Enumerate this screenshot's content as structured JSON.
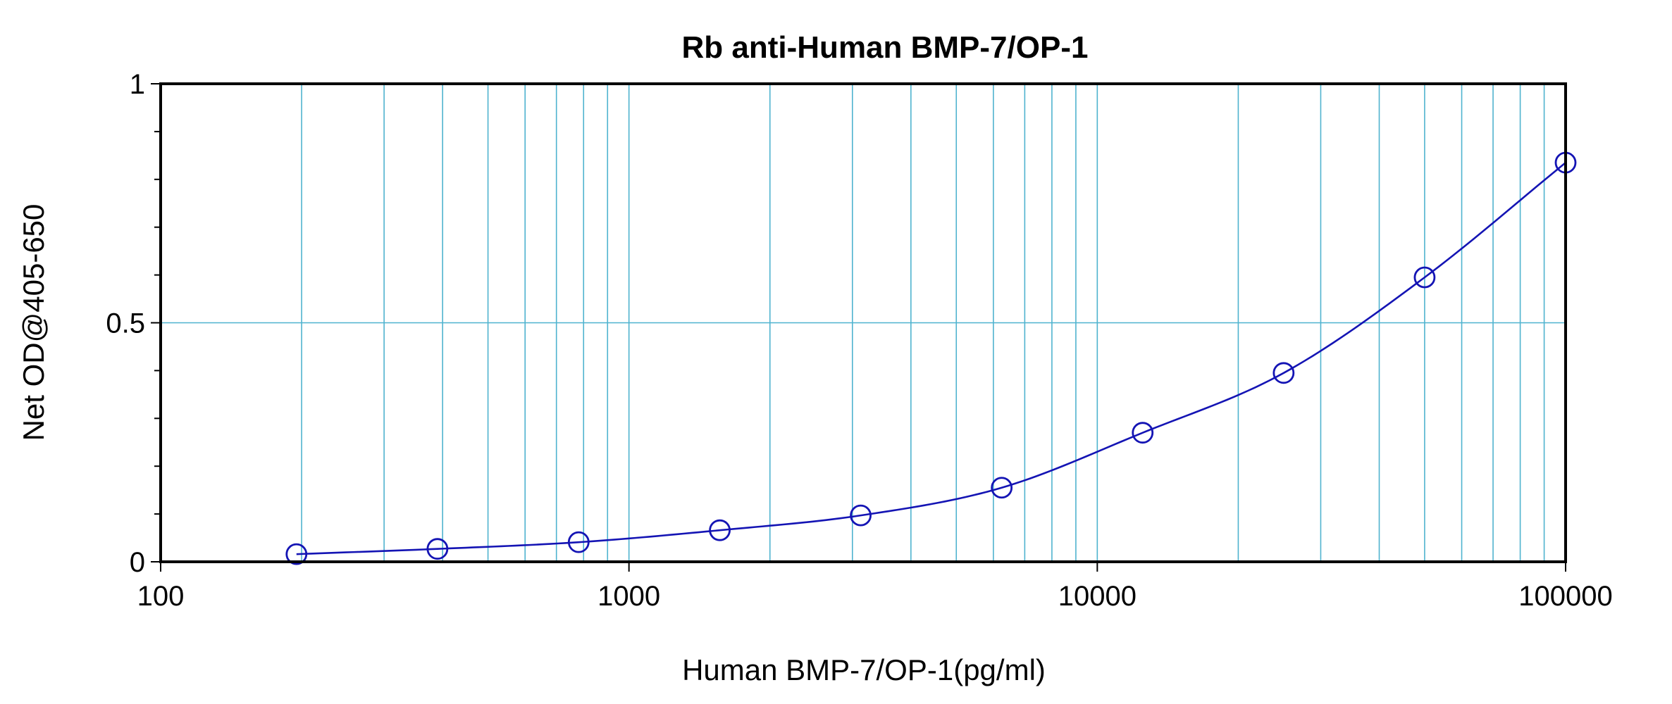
{
  "chart_data": {
    "type": "scatter",
    "title": "Rb anti-Human BMP-7/OP-1",
    "xlabel": "Human BMP-7/OP-1(pg/ml)",
    "ylabel": "Net OD@405-650",
    "x_scale": "log",
    "xlim": [
      100,
      100000
    ],
    "ylim": [
      0,
      1
    ],
    "x_ticks": [
      100,
      1000,
      10000,
      100000
    ],
    "x_tick_labels": [
      "100",
      "1000",
      "10000",
      "100000"
    ],
    "y_ticks": [
      0,
      0.5,
      1
    ],
    "y_tick_labels": [
      "0",
      "0.5",
      "1"
    ],
    "grid": true,
    "series": [
      {
        "x": [
          195,
          390,
          781,
          1563,
          3125,
          6250,
          12500,
          25000,
          50000,
          100000
        ],
        "y": [
          0.016,
          0.027,
          0.041,
          0.066,
          0.097,
          0.155,
          0.27,
          0.395,
          0.595,
          0.835
        ]
      }
    ],
    "colors": {
      "series": "#1414b4",
      "grid": "#4fb3cf",
      "frame": "#000000"
    }
  }
}
